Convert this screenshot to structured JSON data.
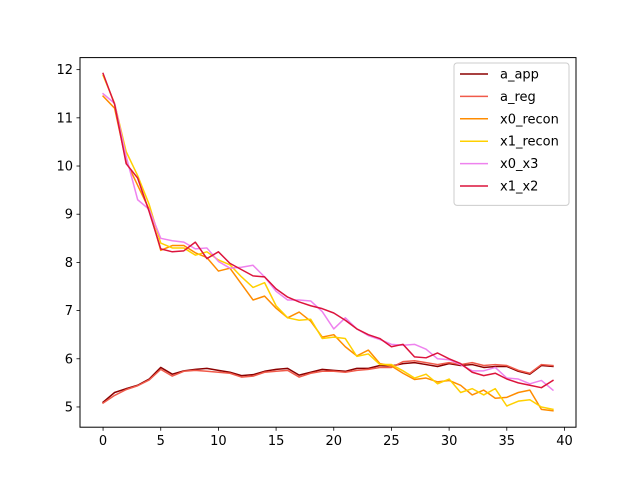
{
  "chart_data": {
    "type": "line",
    "title": "",
    "xlabel": "",
    "ylabel": "",
    "xlim": [
      -2,
      41
    ],
    "ylim": [
      4.58,
      12.25
    ],
    "xticks": [
      0,
      5,
      10,
      15,
      20,
      25,
      30,
      35,
      40
    ],
    "yticks": [
      5,
      6,
      7,
      8,
      9,
      10,
      11,
      12
    ],
    "grid": false,
    "legend_position": "top-right",
    "x": [
      0,
      1,
      2,
      3,
      4,
      5,
      6,
      7,
      8,
      9,
      10,
      11,
      12,
      13,
      14,
      15,
      16,
      17,
      18,
      19,
      20,
      21,
      22,
      23,
      24,
      25,
      26,
      27,
      28,
      29,
      30,
      31,
      32,
      33,
      34,
      35,
      36,
      37,
      38,
      39
    ],
    "series": [
      {
        "name": "a_app",
        "color": "#8b0000",
        "values": [
          5.1,
          5.3,
          5.38,
          5.45,
          5.58,
          5.82,
          5.68,
          5.75,
          5.78,
          5.8,
          5.76,
          5.72,
          5.65,
          5.67,
          5.74,
          5.78,
          5.8,
          5.66,
          5.72,
          5.78,
          5.76,
          5.74,
          5.8,
          5.8,
          5.86,
          5.85,
          5.9,
          5.92,
          5.88,
          5.84,
          5.9,
          5.86,
          5.88,
          5.82,
          5.84,
          5.84,
          5.74,
          5.68,
          5.86,
          5.84
        ]
      },
      {
        "name": "a_reg",
        "color": "#f05a4a",
        "values": [
          5.08,
          5.24,
          5.36,
          5.44,
          5.56,
          5.78,
          5.64,
          5.74,
          5.76,
          5.74,
          5.72,
          5.7,
          5.62,
          5.64,
          5.72,
          5.74,
          5.76,
          5.62,
          5.7,
          5.74,
          5.74,
          5.72,
          5.76,
          5.78,
          5.82,
          5.82,
          5.94,
          5.96,
          5.92,
          5.88,
          5.92,
          5.88,
          5.92,
          5.86,
          5.88,
          5.86,
          5.76,
          5.7,
          5.88,
          5.86
        ]
      },
      {
        "name": "x0_recon",
        "color": "#ff8c00",
        "values": [
          11.45,
          11.2,
          10.1,
          9.6,
          9.1,
          8.25,
          8.35,
          8.35,
          8.2,
          8.1,
          7.82,
          7.88,
          7.55,
          7.22,
          7.3,
          7.05,
          6.85,
          6.97,
          6.78,
          6.45,
          6.5,
          6.25,
          6.06,
          6.18,
          5.9,
          5.85,
          5.7,
          5.57,
          5.6,
          5.52,
          5.55,
          5.45,
          5.25,
          5.35,
          5.18,
          5.2,
          5.3,
          5.35,
          4.95,
          4.92
        ]
      },
      {
        "name": "x1_recon",
        "color": "#ffd000",
        "values": [
          11.88,
          11.3,
          10.3,
          9.8,
          9.2,
          8.4,
          8.3,
          8.3,
          8.15,
          8.22,
          8.05,
          7.95,
          7.7,
          7.48,
          7.58,
          7.1,
          6.85,
          6.8,
          6.82,
          6.42,
          6.45,
          6.42,
          6.05,
          6.1,
          5.88,
          5.88,
          5.75,
          5.6,
          5.68,
          5.48,
          5.58,
          5.3,
          5.38,
          5.25,
          5.38,
          5.02,
          5.12,
          5.15,
          5.0,
          4.95
        ]
      },
      {
        "name": "x0_x3",
        "color": "#ee82ee",
        "values": [
          11.5,
          11.3,
          10.2,
          9.3,
          9.1,
          8.5,
          8.45,
          8.42,
          8.28,
          8.3,
          8.02,
          7.88,
          7.9,
          7.94,
          7.7,
          7.4,
          7.22,
          7.22,
          7.2,
          6.98,
          6.62,
          6.85,
          6.62,
          6.48,
          6.4,
          6.3,
          6.28,
          6.3,
          6.2,
          6.0,
          5.98,
          5.88,
          5.75,
          5.75,
          5.82,
          5.6,
          5.58,
          5.48,
          5.55,
          5.35
        ]
      },
      {
        "name": "x1_x2",
        "color": "#dc143c",
        "values": [
          11.92,
          11.28,
          10.05,
          9.75,
          9.05,
          8.28,
          8.22,
          8.24,
          8.42,
          8.08,
          8.22,
          7.98,
          7.85,
          7.72,
          7.7,
          7.45,
          7.28,
          7.18,
          7.1,
          7.04,
          6.95,
          6.8,
          6.62,
          6.5,
          6.42,
          6.25,
          6.3,
          6.04,
          6.02,
          6.12,
          6.0,
          5.9,
          5.72,
          5.65,
          5.7,
          5.58,
          5.5,
          5.45,
          5.4,
          5.55
        ]
      }
    ]
  }
}
